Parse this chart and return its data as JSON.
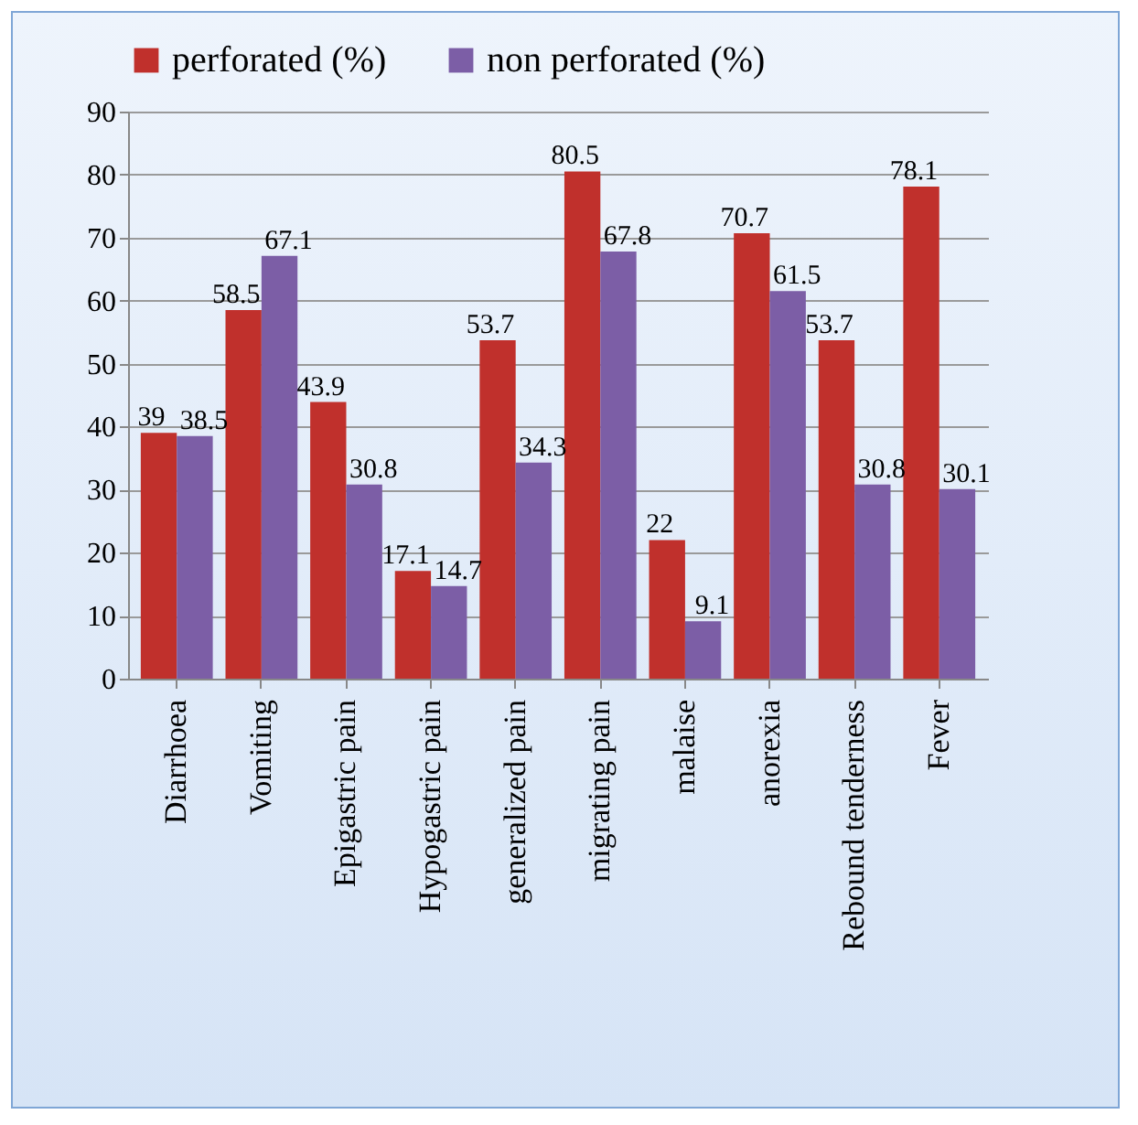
{
  "chart_data": {
    "type": "bar",
    "categories": [
      "Diarrhoea",
      "Vomiting",
      "Epigastric pain",
      "Hypogastric pain",
      "generalized pain",
      "migrating pain",
      "malaise",
      "anorexia",
      "Rebound tenderness",
      "Fever"
    ],
    "series": [
      {
        "name": "perforated (%)",
        "color": "#c0302c",
        "values": [
          39,
          58.5,
          43.9,
          17.1,
          53.7,
          80.5,
          22,
          70.7,
          53.7,
          78.1
        ]
      },
      {
        "name": "non perforated  (%)",
        "color": "#7c5ea6",
        "values": [
          38.5,
          67.1,
          30.8,
          14.7,
          34.3,
          67.8,
          9.1,
          61.5,
          30.8,
          30.1
        ]
      }
    ],
    "ylim": [
      0,
      90
    ],
    "yticks": [
      0,
      10,
      20,
      30,
      40,
      50,
      60,
      70,
      80,
      90
    ],
    "grid": "y",
    "legend": "top",
    "data_labels": true
  }
}
